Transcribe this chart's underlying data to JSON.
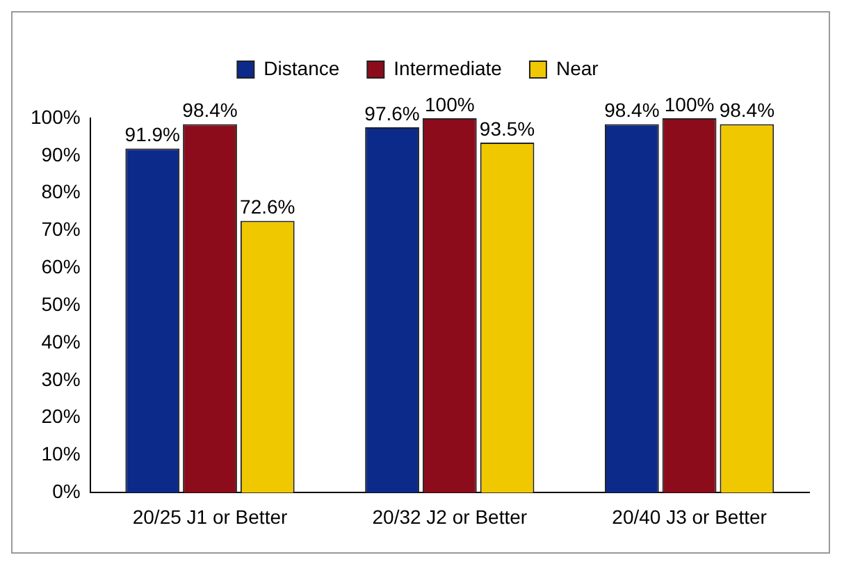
{
  "chart_data": {
    "type": "bar",
    "categories": [
      "20/25 J1 or Better",
      "20/32 J2 or Better",
      "20/40 J3 or Better"
    ],
    "series": [
      {
        "name": "Distance",
        "color": "#0b2a8a",
        "values": [
          91.9,
          97.6,
          98.4
        ],
        "value_labels": [
          "91.9%",
          "97.6%",
          "98.4%"
        ]
      },
      {
        "name": "Intermediate",
        "color": "#8c0c1c",
        "values": [
          98.4,
          100,
          100
        ],
        "value_labels": [
          "98.4%",
          "100%",
          "100%"
        ]
      },
      {
        "name": "Near",
        "color": "#f0c800",
        "values": [
          72.6,
          93.5,
          98.4
        ],
        "value_labels": [
          "72.6%",
          "93.5%",
          "98.4%"
        ]
      }
    ],
    "ylim": [
      0,
      100
    ],
    "yticks": [
      {
        "value": 0,
        "label": "0%"
      },
      {
        "value": 10,
        "label": "10%"
      },
      {
        "value": 20,
        "label": "20%"
      },
      {
        "value": 30,
        "label": "30%"
      },
      {
        "value": 40,
        "label": "40%"
      },
      {
        "value": 50,
        "label": "50%"
      },
      {
        "value": 60,
        "label": "60%"
      },
      {
        "value": 70,
        "label": "70%"
      },
      {
        "value": 80,
        "label": "80%"
      },
      {
        "value": 90,
        "label": "90%"
      },
      {
        "value": 100,
        "label": "100%"
      }
    ],
    "grid": false,
    "legend": "top"
  }
}
